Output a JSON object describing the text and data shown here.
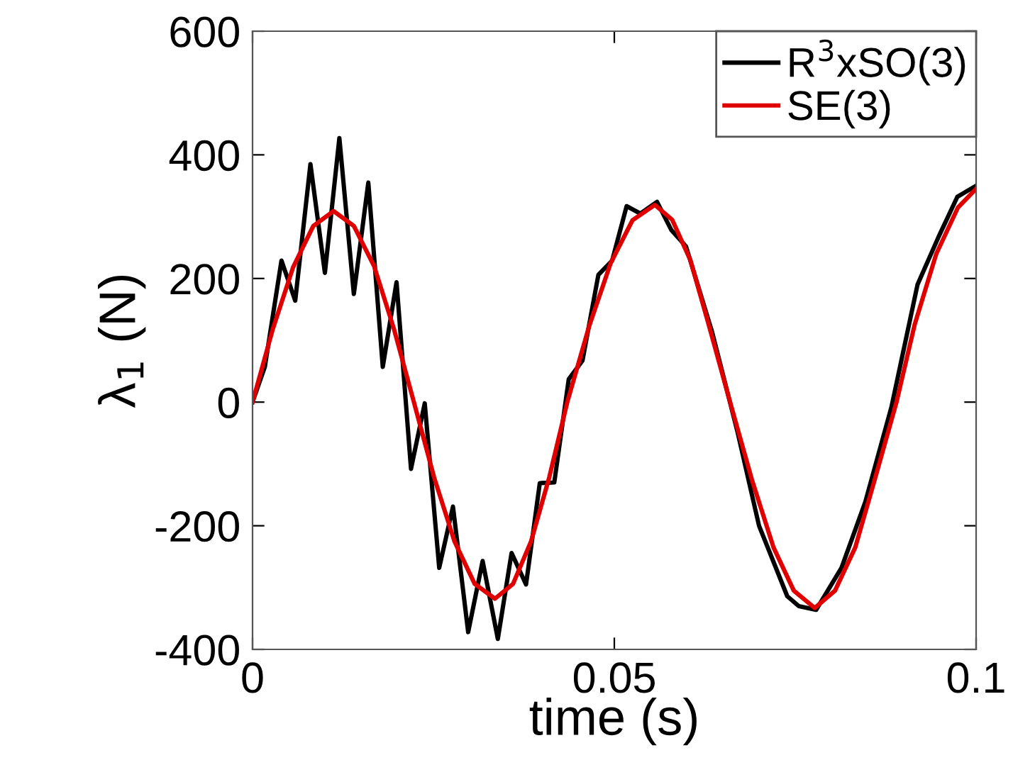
{
  "chart_data": {
    "type": "line",
    "xlabel": "time (s)",
    "ylabel": "λ$_{1}$ (N)",
    "xlim": [
      0,
      0.1
    ],
    "ylim": [
      -400,
      600
    ],
    "xticks": [
      0,
      0.05,
      0.1
    ],
    "yticks": [
      -400,
      -200,
      0,
      200,
      400,
      600
    ],
    "grid": false,
    "legend": "top right",
    "marker": "none",
    "line_style": "solid",
    "series": [
      {
        "name": "R$^{3}$xSO(3)",
        "color": "#000000",
        "x": [
          0,
          0.0017,
          0.004,
          0.0059,
          0.008,
          0.01,
          0.012,
          0.014,
          0.016,
          0.018,
          0.0199,
          0.0219,
          0.0238,
          0.0258,
          0.0277,
          0.0298,
          0.0318,
          0.0339,
          0.0358,
          0.0378,
          0.0397,
          0.0417,
          0.0437,
          0.0456,
          0.0478,
          0.0497,
          0.0517,
          0.0536,
          0.0559,
          0.0579,
          0.0599,
          0.0635,
          0.067,
          0.07,
          0.0739,
          0.0755,
          0.0779,
          0.0814,
          0.0847,
          0.0883,
          0.0919,
          0.0948,
          0.0974,
          0.1
        ],
        "values": [
          0,
          57,
          229,
          164,
          385,
          209,
          427,
          175,
          355,
          57,
          194,
          -108,
          -2,
          -268,
          -169,
          -372,
          -257,
          -383,
          -244,
          -295,
          -131,
          -130,
          37,
          67,
          206,
          229,
          317,
          305,
          324,
          278,
          252,
          114,
          -47,
          -200,
          -314,
          -330,
          -336,
          -268,
          -161,
          -8,
          190,
          267,
          332,
          350
        ]
      },
      {
        "name": "SE(3)",
        "color": "#e00000",
        "x": [
          0,
          0.0028,
          0.0056,
          0.0084,
          0.0112,
          0.014,
          0.0168,
          0.0195,
          0.0223,
          0.0251,
          0.0279,
          0.0307,
          0.0335,
          0.036,
          0.0385,
          0.041,
          0.0435,
          0.0465,
          0.0495,
          0.0525,
          0.0556,
          0.058,
          0.0605,
          0.063,
          0.066,
          0.069,
          0.072,
          0.0748,
          0.0777,
          0.0805,
          0.0833,
          0.086,
          0.089,
          0.0915,
          0.0945,
          0.0975,
          0.1
        ],
        "values": [
          0,
          118,
          218,
          285,
          309,
          285,
          220,
          120,
          0,
          -122,
          -225,
          -294,
          -318,
          -294,
          -225,
          -122,
          0,
          122,
          225,
          294,
          319,
          295,
          230,
          127,
          0,
          -125,
          -235,
          -305,
          -333,
          -305,
          -235,
          -125,
          0,
          125,
          240,
          315,
          345
        ]
      }
    ]
  }
}
